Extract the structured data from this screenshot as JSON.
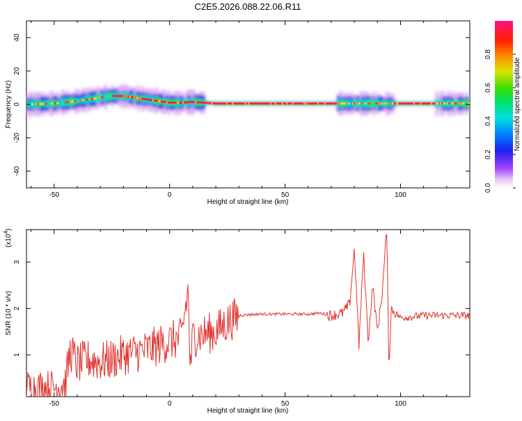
{
  "title": "C2E5.2026.088.22.06.R11",
  "chart_data": [
    {
      "type": "heatmap",
      "xlabel": "Height of straight line (km)",
      "ylabel": "Frequency (Hz)",
      "xlim": [
        -62,
        130
      ],
      "ylim": [
        -50,
        50
      ],
      "xticks": [
        -50,
        0,
        50,
        100
      ],
      "yticks": [
        -40,
        -20,
        0,
        20,
        40
      ],
      "colorbar": {
        "label": "Normalized spectral amplitude",
        "range": [
          0,
          1
        ],
        "ticks": [
          "0.0",
          "0.2",
          "0.4",
          "0.6",
          "0.8"
        ]
      },
      "ridge": {
        "x": [
          -62,
          -50,
          -40,
          -30,
          -25,
          -20,
          -15,
          -10,
          -5,
          0,
          5,
          10,
          15,
          20,
          30,
          50,
          70,
          80,
          90,
          100,
          110,
          120,
          130
        ],
        "freq_hz": [
          0,
          0.5,
          2,
          4,
          5,
          5,
          4,
          3,
          2,
          1,
          1,
          1.5,
          1,
          0.5,
          0.5,
          0.5,
          0.5,
          0.5,
          0.5,
          0.5,
          0.5,
          0.5,
          0.5
        ]
      }
    },
    {
      "type": "line",
      "xlabel": "Height of straight line (km)",
      "ylabel": "SNR (10 * v/v)",
      "multiplier": "(x10",
      "multiplier_exp": "4",
      "xlim": [
        -62,
        130
      ],
      "ylim": [
        0.1,
        3.7
      ],
      "xticks": [
        -50,
        0,
        50,
        100
      ],
      "yticks": [
        1,
        2,
        3
      ],
      "color": "#e0302a",
      "series": [
        {
          "x": [
            -62,
            -55,
            -50,
            -45,
            -43,
            -40,
            -35,
            -30,
            -25,
            -20,
            -15,
            -10,
            -5,
            0,
            5,
            8,
            9,
            10,
            15,
            20,
            25,
            30,
            35,
            40,
            50,
            60,
            65,
            70,
            75,
            78,
            80,
            82,
            84,
            86,
            88,
            90,
            92,
            94,
            95,
            96,
            100,
            110,
            120,
            130
          ],
          "y": [
            0.3,
            0.3,
            0.3,
            0.4,
            1.1,
            0.8,
            0.9,
            0.85,
            0.9,
            1.0,
            1.05,
            1.1,
            1.2,
            1.3,
            1.35,
            2.4,
            0.6,
            1.4,
            1.45,
            1.5,
            1.7,
            1.85,
            1.87,
            1.88,
            1.88,
            1.88,
            1.9,
            1.85,
            1.9,
            2.1,
            3.3,
            1.2,
            3.2,
            1.3,
            2.5,
            1.5,
            2.3,
            3.7,
            0.7,
            2.0,
            1.8,
            1.85,
            1.85,
            1.85
          ]
        }
      ]
    }
  ]
}
